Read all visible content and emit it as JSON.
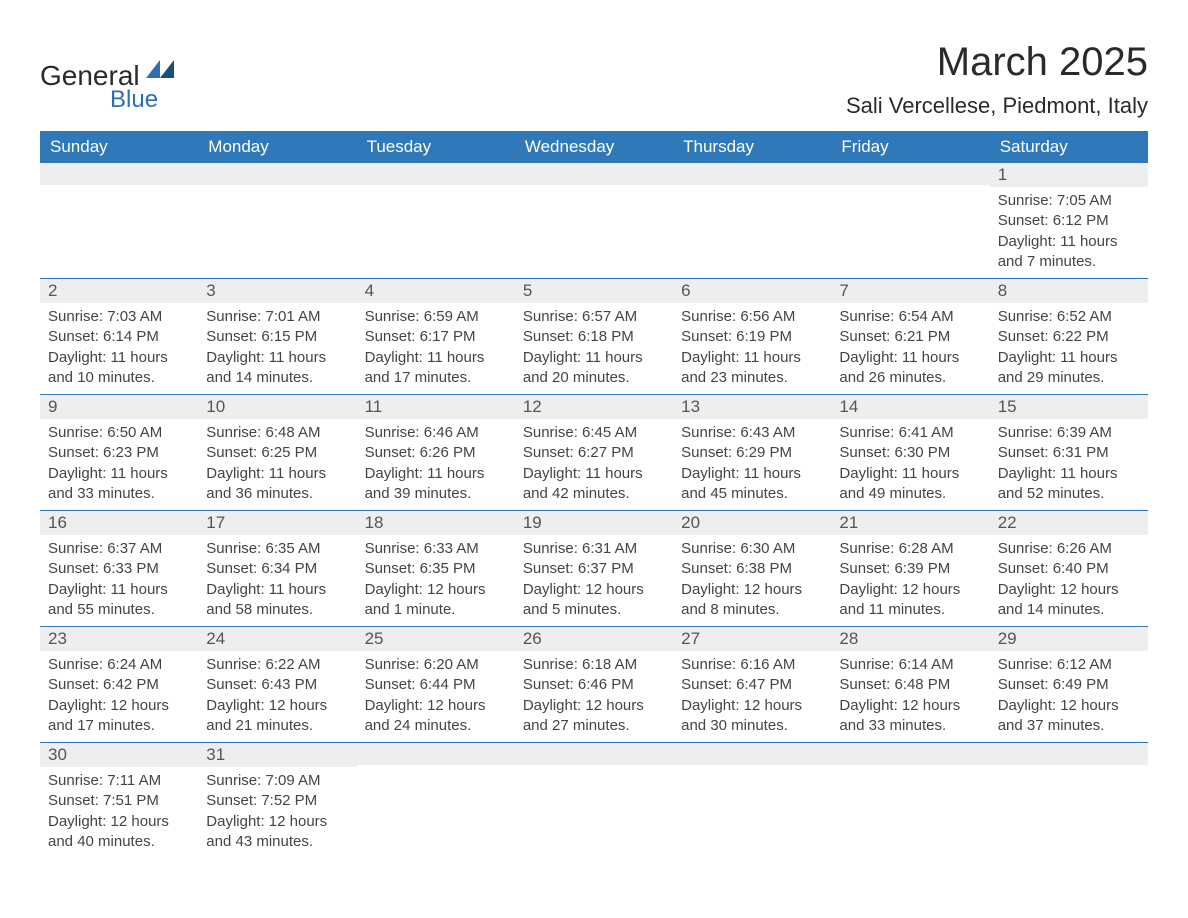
{
  "logo": {
    "text_general": "General",
    "text_blue": "Blue",
    "accent_color": "#2d6fb0"
  },
  "header": {
    "month_title": "March 2025",
    "location": "Sali Vercellese, Piedmont, Italy"
  },
  "colors": {
    "header_bg": "#3079b8",
    "header_text": "#ffffff",
    "daynum_bg": "#eeeeee",
    "row_border": "#3079b8",
    "text": "#444444"
  },
  "typography": {
    "title_fontsize": 40,
    "location_fontsize": 22,
    "header_fontsize": 17,
    "daynum_fontsize": 17,
    "content_fontsize": 15,
    "font_family": "Arial"
  },
  "day_headers": [
    "Sunday",
    "Monday",
    "Tuesday",
    "Wednesday",
    "Thursday",
    "Friday",
    "Saturday"
  ],
  "weeks": [
    [
      {
        "day": "",
        "sunrise": "",
        "sunset": "",
        "daylight": ""
      },
      {
        "day": "",
        "sunrise": "",
        "sunset": "",
        "daylight": ""
      },
      {
        "day": "",
        "sunrise": "",
        "sunset": "",
        "daylight": ""
      },
      {
        "day": "",
        "sunrise": "",
        "sunset": "",
        "daylight": ""
      },
      {
        "day": "",
        "sunrise": "",
        "sunset": "",
        "daylight": ""
      },
      {
        "day": "",
        "sunrise": "",
        "sunset": "",
        "daylight": ""
      },
      {
        "day": "1",
        "sunrise": "Sunrise: 7:05 AM",
        "sunset": "Sunset: 6:12 PM",
        "daylight": "Daylight: 11 hours and 7 minutes."
      }
    ],
    [
      {
        "day": "2",
        "sunrise": "Sunrise: 7:03 AM",
        "sunset": "Sunset: 6:14 PM",
        "daylight": "Daylight: 11 hours and 10 minutes."
      },
      {
        "day": "3",
        "sunrise": "Sunrise: 7:01 AM",
        "sunset": "Sunset: 6:15 PM",
        "daylight": "Daylight: 11 hours and 14 minutes."
      },
      {
        "day": "4",
        "sunrise": "Sunrise: 6:59 AM",
        "sunset": "Sunset: 6:17 PM",
        "daylight": "Daylight: 11 hours and 17 minutes."
      },
      {
        "day": "5",
        "sunrise": "Sunrise: 6:57 AM",
        "sunset": "Sunset: 6:18 PM",
        "daylight": "Daylight: 11 hours and 20 minutes."
      },
      {
        "day": "6",
        "sunrise": "Sunrise: 6:56 AM",
        "sunset": "Sunset: 6:19 PM",
        "daylight": "Daylight: 11 hours and 23 minutes."
      },
      {
        "day": "7",
        "sunrise": "Sunrise: 6:54 AM",
        "sunset": "Sunset: 6:21 PM",
        "daylight": "Daylight: 11 hours and 26 minutes."
      },
      {
        "day": "8",
        "sunrise": "Sunrise: 6:52 AM",
        "sunset": "Sunset: 6:22 PM",
        "daylight": "Daylight: 11 hours and 29 minutes."
      }
    ],
    [
      {
        "day": "9",
        "sunrise": "Sunrise: 6:50 AM",
        "sunset": "Sunset: 6:23 PM",
        "daylight": "Daylight: 11 hours and 33 minutes."
      },
      {
        "day": "10",
        "sunrise": "Sunrise: 6:48 AM",
        "sunset": "Sunset: 6:25 PM",
        "daylight": "Daylight: 11 hours and 36 minutes."
      },
      {
        "day": "11",
        "sunrise": "Sunrise: 6:46 AM",
        "sunset": "Sunset: 6:26 PM",
        "daylight": "Daylight: 11 hours and 39 minutes."
      },
      {
        "day": "12",
        "sunrise": "Sunrise: 6:45 AM",
        "sunset": "Sunset: 6:27 PM",
        "daylight": "Daylight: 11 hours and 42 minutes."
      },
      {
        "day": "13",
        "sunrise": "Sunrise: 6:43 AM",
        "sunset": "Sunset: 6:29 PM",
        "daylight": "Daylight: 11 hours and 45 minutes."
      },
      {
        "day": "14",
        "sunrise": "Sunrise: 6:41 AM",
        "sunset": "Sunset: 6:30 PM",
        "daylight": "Daylight: 11 hours and 49 minutes."
      },
      {
        "day": "15",
        "sunrise": "Sunrise: 6:39 AM",
        "sunset": "Sunset: 6:31 PM",
        "daylight": "Daylight: 11 hours and 52 minutes."
      }
    ],
    [
      {
        "day": "16",
        "sunrise": "Sunrise: 6:37 AM",
        "sunset": "Sunset: 6:33 PM",
        "daylight": "Daylight: 11 hours and 55 minutes."
      },
      {
        "day": "17",
        "sunrise": "Sunrise: 6:35 AM",
        "sunset": "Sunset: 6:34 PM",
        "daylight": "Daylight: 11 hours and 58 minutes."
      },
      {
        "day": "18",
        "sunrise": "Sunrise: 6:33 AM",
        "sunset": "Sunset: 6:35 PM",
        "daylight": "Daylight: 12 hours and 1 minute."
      },
      {
        "day": "19",
        "sunrise": "Sunrise: 6:31 AM",
        "sunset": "Sunset: 6:37 PM",
        "daylight": "Daylight: 12 hours and 5 minutes."
      },
      {
        "day": "20",
        "sunrise": "Sunrise: 6:30 AM",
        "sunset": "Sunset: 6:38 PM",
        "daylight": "Daylight: 12 hours and 8 minutes."
      },
      {
        "day": "21",
        "sunrise": "Sunrise: 6:28 AM",
        "sunset": "Sunset: 6:39 PM",
        "daylight": "Daylight: 12 hours and 11 minutes."
      },
      {
        "day": "22",
        "sunrise": "Sunrise: 6:26 AM",
        "sunset": "Sunset: 6:40 PM",
        "daylight": "Daylight: 12 hours and 14 minutes."
      }
    ],
    [
      {
        "day": "23",
        "sunrise": "Sunrise: 6:24 AM",
        "sunset": "Sunset: 6:42 PM",
        "daylight": "Daylight: 12 hours and 17 minutes."
      },
      {
        "day": "24",
        "sunrise": "Sunrise: 6:22 AM",
        "sunset": "Sunset: 6:43 PM",
        "daylight": "Daylight: 12 hours and 21 minutes."
      },
      {
        "day": "25",
        "sunrise": "Sunrise: 6:20 AM",
        "sunset": "Sunset: 6:44 PM",
        "daylight": "Daylight: 12 hours and 24 minutes."
      },
      {
        "day": "26",
        "sunrise": "Sunrise: 6:18 AM",
        "sunset": "Sunset: 6:46 PM",
        "daylight": "Daylight: 12 hours and 27 minutes."
      },
      {
        "day": "27",
        "sunrise": "Sunrise: 6:16 AM",
        "sunset": "Sunset: 6:47 PM",
        "daylight": "Daylight: 12 hours and 30 minutes."
      },
      {
        "day": "28",
        "sunrise": "Sunrise: 6:14 AM",
        "sunset": "Sunset: 6:48 PM",
        "daylight": "Daylight: 12 hours and 33 minutes."
      },
      {
        "day": "29",
        "sunrise": "Sunrise: 6:12 AM",
        "sunset": "Sunset: 6:49 PM",
        "daylight": "Daylight: 12 hours and 37 minutes."
      }
    ],
    [
      {
        "day": "30",
        "sunrise": "Sunrise: 7:11 AM",
        "sunset": "Sunset: 7:51 PM",
        "daylight": "Daylight: 12 hours and 40 minutes."
      },
      {
        "day": "31",
        "sunrise": "Sunrise: 7:09 AM",
        "sunset": "Sunset: 7:52 PM",
        "daylight": "Daylight: 12 hours and 43 minutes."
      },
      {
        "day": "",
        "sunrise": "",
        "sunset": "",
        "daylight": ""
      },
      {
        "day": "",
        "sunrise": "",
        "sunset": "",
        "daylight": ""
      },
      {
        "day": "",
        "sunrise": "",
        "sunset": "",
        "daylight": ""
      },
      {
        "day": "",
        "sunrise": "",
        "sunset": "",
        "daylight": ""
      },
      {
        "day": "",
        "sunrise": "",
        "sunset": "",
        "daylight": ""
      }
    ]
  ]
}
